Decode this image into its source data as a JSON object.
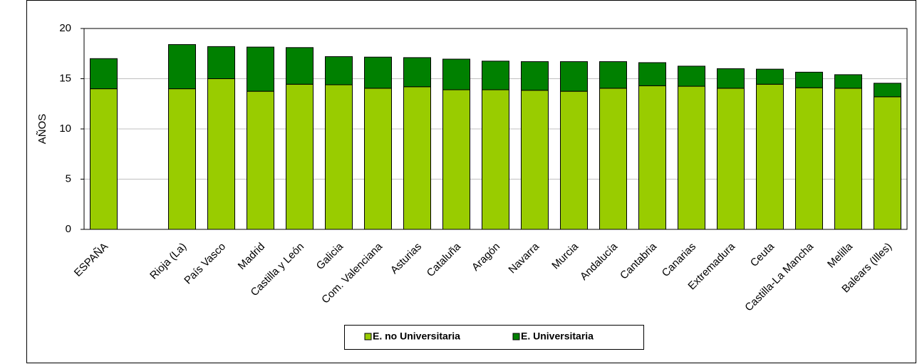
{
  "chart_data": {
    "type": "bar",
    "stacked": true,
    "y_label": "AÑOS",
    "categories": [
      "ESPAÑA",
      null,
      "Rioja (La)",
      "País Vasco",
      "Madrid",
      "Castilla y León",
      "Galicia",
      "Com. Valenciana",
      "Asturias",
      "Cataluña",
      "Aragón",
      "Navarra",
      "Murcia",
      "Andalucía",
      "Cantabria",
      "Canarias",
      "Extremadura",
      "Ceuta",
      "Castilla-La Mancha",
      "Melilla",
      "Balears (Illes)"
    ],
    "series": [
      {
        "name": "E. no Universitaria",
        "color": "#99cc00",
        "values": [
          14.0,
          null,
          14.0,
          15.0,
          13.75,
          14.45,
          14.4,
          14.05,
          14.2,
          13.9,
          13.9,
          13.85,
          13.75,
          14.05,
          14.3,
          14.25,
          14.05,
          14.45,
          14.1,
          14.05,
          13.2
        ]
      },
      {
        "name": "E. Universitaria",
        "color": "#008000",
        "values": [
          3.0,
          null,
          4.4,
          3.2,
          4.4,
          3.65,
          2.8,
          3.1,
          2.9,
          3.05,
          2.85,
          2.85,
          2.95,
          2.65,
          2.3,
          2.0,
          1.95,
          1.5,
          1.55,
          1.35,
          1.35
        ]
      }
    ],
    "ylim": [
      0,
      20
    ],
    "yticks": [
      0,
      5,
      10,
      15,
      20
    ],
    "grid": true,
    "legend": "bottom"
  }
}
